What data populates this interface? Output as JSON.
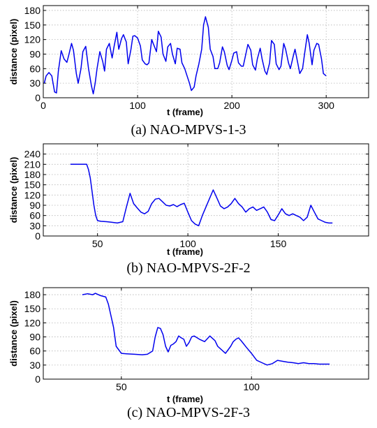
{
  "chart_data": [
    {
      "type": "line",
      "caption": "(a) NAO-MPVS-1-3",
      "xlabel": "t (frame)",
      "ylabel": "distance (pixel)",
      "xlim": [
        0,
        345
      ],
      "ylim": [
        0,
        190
      ],
      "xticks": [
        0,
        100,
        200,
        300
      ],
      "yticks": [
        0,
        30,
        60,
        90,
        120,
        150,
        180
      ],
      "grid": true,
      "color": "#0000ee",
      "x": [
        1,
        3,
        6,
        9,
        12,
        14,
        16,
        19,
        22,
        25,
        27,
        30,
        32,
        35,
        37,
        40,
        42,
        45,
        48,
        51,
        53,
        55,
        57,
        60,
        63,
        65,
        67,
        70,
        73,
        75,
        78,
        80,
        83,
        85,
        88,
        90,
        93,
        95,
        97,
        100,
        103,
        105,
        108,
        110,
        112,
        115,
        117,
        120,
        122,
        125,
        127,
        130,
        132,
        135,
        137,
        140,
        142,
        145,
        147,
        150,
        152,
        155,
        157,
        160,
        162,
        165,
        168,
        170,
        172,
        175,
        177,
        180,
        182,
        185,
        187,
        190,
        192,
        195,
        197,
        200,
        202,
        205,
        207,
        210,
        212,
        215,
        217,
        220,
        222,
        225,
        227,
        230,
        232,
        235,
        237,
        240,
        242,
        245,
        247,
        250,
        252,
        255,
        257,
        260,
        262,
        265,
        267,
        270,
        272,
        275,
        277,
        280,
        282,
        285,
        287,
        290,
        292,
        295,
        297,
        300
      ],
      "y": [
        30,
        45,
        52,
        45,
        12,
        10,
        55,
        97,
        80,
        73,
        88,
        112,
        98,
        50,
        30,
        60,
        95,
        106,
        60,
        25,
        8,
        30,
        60,
        95,
        75,
        55,
        100,
        112,
        82,
        105,
        135,
        100,
        122,
        130,
        115,
        70,
        100,
        127,
        128,
        123,
        107,
        78,
        70,
        68,
        72,
        120,
        110,
        95,
        137,
        125,
        90,
        75,
        105,
        112,
        90,
        70,
        102,
        100,
        72,
        60,
        48,
        30,
        15,
        22,
        45,
        70,
        100,
        150,
        167,
        145,
        100,
        85,
        60,
        60,
        72,
        105,
        95,
        67,
        58,
        77,
        92,
        95,
        72,
        65,
        65,
        92,
        110,
        98,
        68,
        57,
        80,
        102,
        80,
        55,
        48,
        72,
        118,
        110,
        70,
        58,
        65,
        112,
        100,
        72,
        60,
        85,
        100,
        70,
        50,
        60,
        90,
        130,
        112,
        68,
        98,
        112,
        110,
        80,
        50,
        45
      ]
    },
    {
      "type": "line",
      "caption": "(b) NAO-MPVS-2F-2",
      "xlabel": "t (frame)",
      "ylabel": "distance (pixel)",
      "xlim": [
        20,
        200
      ],
      "ylim": [
        0,
        270
      ],
      "xticks": [
        50,
        100,
        150
      ],
      "yticks": [
        0,
        30,
        60,
        90,
        120,
        150,
        180,
        210,
        240
      ],
      "grid": true,
      "color": "#0000ee",
      "x": [
        35,
        38,
        41,
        44,
        45,
        46,
        47,
        48,
        49,
        50,
        52,
        55,
        58,
        61,
        64,
        66,
        68,
        70,
        72,
        74,
        76,
        78,
        80,
        82,
        84,
        86,
        88,
        90,
        92,
        94,
        96,
        98,
        100,
        102,
        104,
        106,
        108,
        110,
        112,
        114,
        116,
        118,
        120,
        122,
        124,
        126,
        128,
        130,
        132,
        134,
        136,
        138,
        140,
        142,
        144,
        146,
        148,
        150,
        152,
        154,
        156,
        158,
        160,
        162,
        164,
        166,
        168,
        170,
        172,
        174,
        176,
        178,
        180
      ],
      "y": [
        210,
        210,
        210,
        210,
        195,
        170,
        130,
        90,
        60,
        45,
        43,
        42,
        40,
        38,
        42,
        85,
        125,
        95,
        82,
        70,
        65,
        72,
        95,
        108,
        110,
        100,
        90,
        88,
        92,
        86,
        92,
        96,
        70,
        45,
        35,
        30,
        60,
        85,
        110,
        135,
        112,
        88,
        80,
        85,
        95,
        110,
        95,
        85,
        70,
        80,
        85,
        75,
        80,
        85,
        70,
        48,
        45,
        62,
        80,
        65,
        60,
        65,
        60,
        55,
        45,
        55,
        90,
        70,
        50,
        45,
        40,
        38,
        38
      ]
    },
    {
      "type": "line",
      "caption": "(c) NAO-MPVS-2F-3",
      "xlabel": "t (frame)",
      "ylabel": "distance (pixel)",
      "xlim": [
        20,
        145
      ],
      "ylim": [
        0,
        195
      ],
      "xticks": [
        50,
        100
      ],
      "yticks": [
        0,
        30,
        60,
        90,
        120,
        150,
        180
      ],
      "grid": true,
      "color": "#0000ee",
      "x": [
        35,
        37,
        39,
        40,
        42,
        44,
        45,
        47,
        48,
        50,
        52,
        55,
        58,
        60,
        62,
        63,
        64,
        65,
        66,
        67,
        68,
        69,
        70,
        71,
        72,
        73,
        74,
        75,
        76,
        77,
        78,
        80,
        82,
        84,
        86,
        87,
        88,
        90,
        92,
        93,
        94,
        95,
        96,
        97,
        98,
        100,
        102,
        104,
        106,
        108,
        110,
        112,
        114,
        116,
        118,
        120,
        122,
        124,
        126,
        128,
        130
      ],
      "y": [
        180,
        182,
        180,
        183,
        178,
        175,
        160,
        110,
        70,
        55,
        54,
        53,
        52,
        53,
        60,
        90,
        110,
        108,
        95,
        70,
        58,
        72,
        75,
        80,
        92,
        88,
        85,
        70,
        78,
        90,
        92,
        85,
        80,
        92,
        82,
        70,
        65,
        55,
        70,
        80,
        85,
        88,
        82,
        75,
        68,
        55,
        40,
        35,
        30,
        33,
        40,
        38,
        36,
        35,
        33,
        35,
        33,
        33,
        32,
        32,
        32
      ]
    }
  ]
}
